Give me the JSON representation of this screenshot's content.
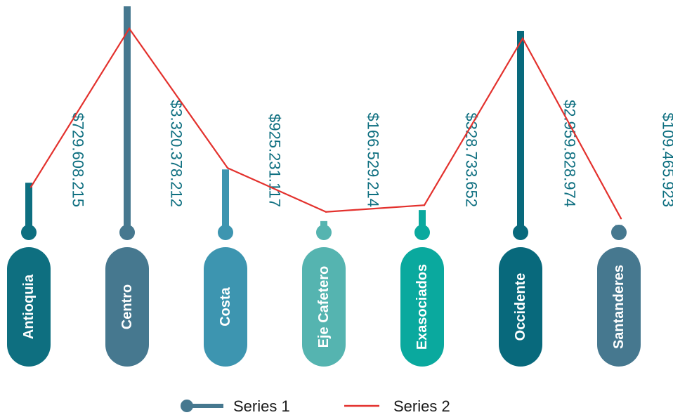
{
  "chart_data": {
    "type": "bar",
    "categories": [
      "Antioquia",
      "Centro",
      "Costa",
      "Eje Cafetero",
      "Exasociados",
      "Occidente",
      "Santanderes"
    ],
    "value_labels": [
      "$729.608.215",
      "$3.320.378.212",
      "$925.231.117",
      "$166.529.214",
      "$328.733.652",
      "$2.959.828.974",
      "$109.465.923"
    ],
    "series": [
      {
        "name": "Series 1",
        "values": [
          729608215,
          3320378212,
          925231117,
          166529214,
          328733652,
          2959828974,
          109465923
        ]
      },
      {
        "name": "Series 2",
        "values": [
          667000000,
          2993000000,
          947000000,
          302000000,
          400000000,
          2849000000,
          204000000
        ]
      }
    ],
    "ylim": [
      0,
      3320378212
    ],
    "legend_position": "bottom",
    "grid": false
  },
  "colors": {
    "bars": [
      "#0e6f80",
      "#46788f",
      "#3d95b0",
      "#55b4b0",
      "#0aa99e",
      "#08697c",
      "#46788f"
    ],
    "series2_line": "#e3312d",
    "series1_legend": "#46788f",
    "value_label": "#0e6f80"
  }
}
